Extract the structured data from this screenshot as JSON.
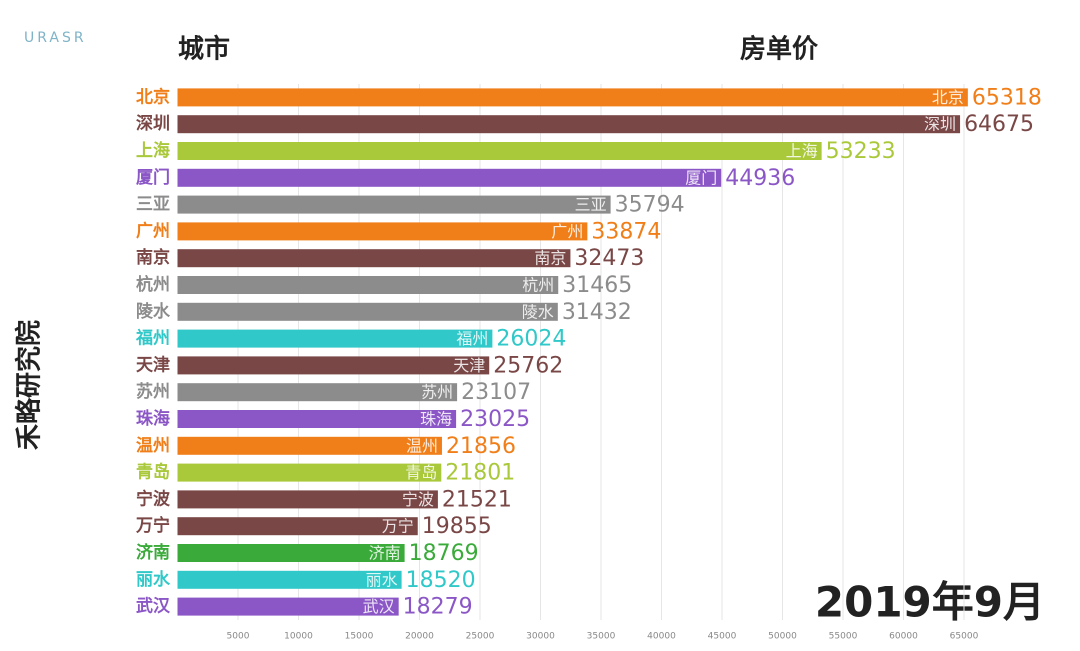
{
  "header": {
    "logo": "URASR",
    "left_title": "城市",
    "right_title": "房单价",
    "side_label": "禾略研究院"
  },
  "chart_data": {
    "type": "bar",
    "orientation": "horizontal",
    "date_label": "2019年9月",
    "categories": [
      "北京",
      "深圳",
      "上海",
      "厦门",
      "三亚",
      "广州",
      "南京",
      "杭州",
      "陵水",
      "福州",
      "天津",
      "苏州",
      "珠海",
      "温州",
      "青岛",
      "宁波",
      "万宁",
      "济南",
      "丽水",
      "武汉"
    ],
    "values": [
      65318,
      64675,
      53233,
      44936,
      35794,
      33874,
      32473,
      31465,
      31432,
      26024,
      25762,
      23107,
      23025,
      21856,
      21801,
      21521,
      19855,
      18769,
      18520,
      18279
    ],
    "colors": [
      "#f07f1a",
      "#7a4747",
      "#a9c83a",
      "#8b57c6",
      "#8c8c8c",
      "#f07f1a",
      "#7a4747",
      "#8c8c8c",
      "#8c8c8c",
      "#30c8c8",
      "#7a4747",
      "#8c8c8c",
      "#8b57c6",
      "#f07f1a",
      "#a9c83a",
      "#7a4747",
      "#7a4747",
      "#3aab3a",
      "#30c8c8",
      "#8b57c6"
    ],
    "xlim": [
      0,
      70000
    ],
    "xticks": [
      5000,
      10000,
      15000,
      20000,
      25000,
      30000,
      35000,
      40000,
      45000,
      50000,
      55000,
      60000,
      65000
    ],
    "grid": true
  }
}
